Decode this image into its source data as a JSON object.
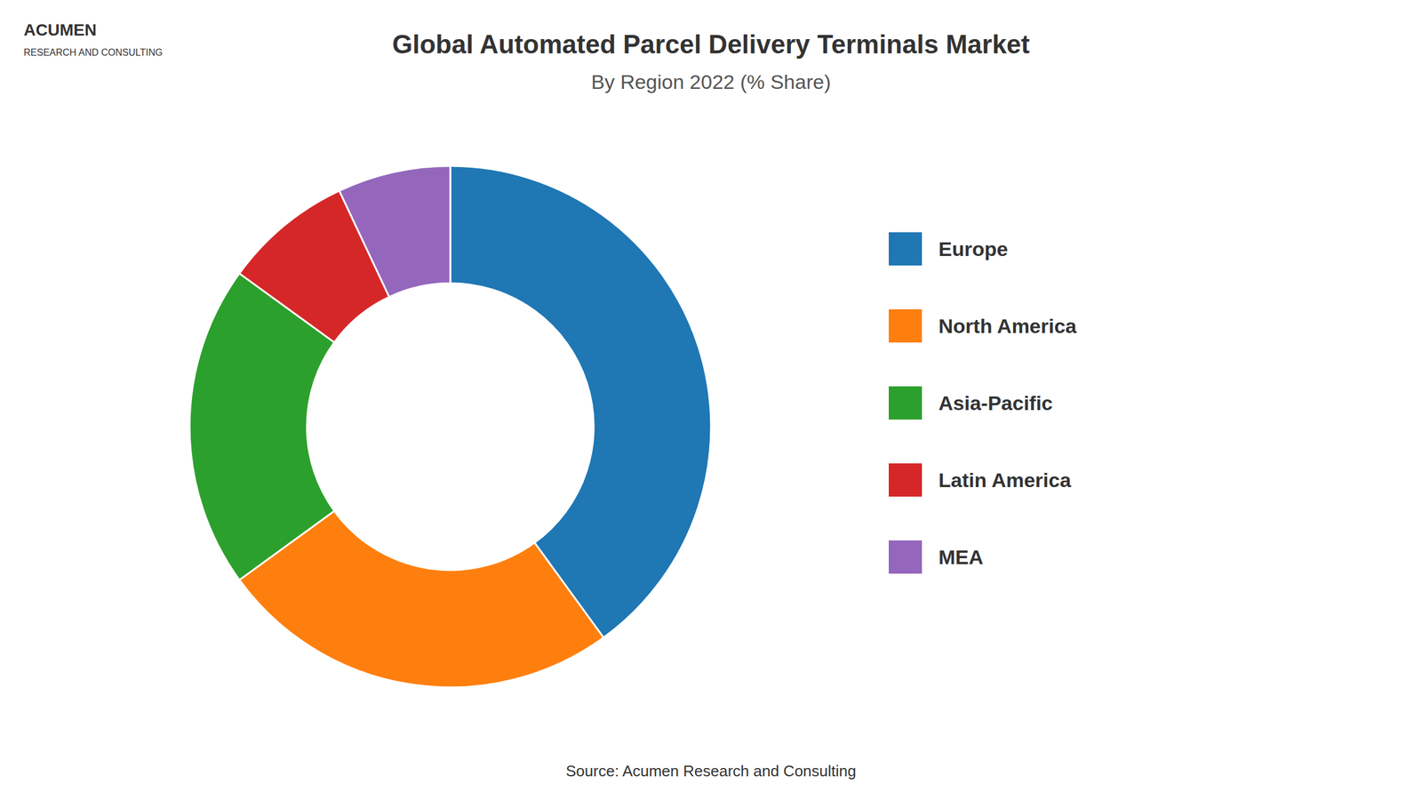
{
  "chart_data": {
    "type": "donut",
    "title": "Global Automated Parcel Delivery Terminals Market",
    "subtitle": "By Region 2022 (% Share)",
    "categories": [
      "Europe",
      "North America",
      "Asia-Pacific",
      "Latin America",
      "MEA"
    ],
    "values": [
      40,
      25,
      20,
      8,
      7
    ],
    "legend": "right",
    "annotations": [
      "Source: Acumen Research and Consulting",
      "ACUMEN",
      "RESEARCH AND CONSULTING"
    ]
  }
}
